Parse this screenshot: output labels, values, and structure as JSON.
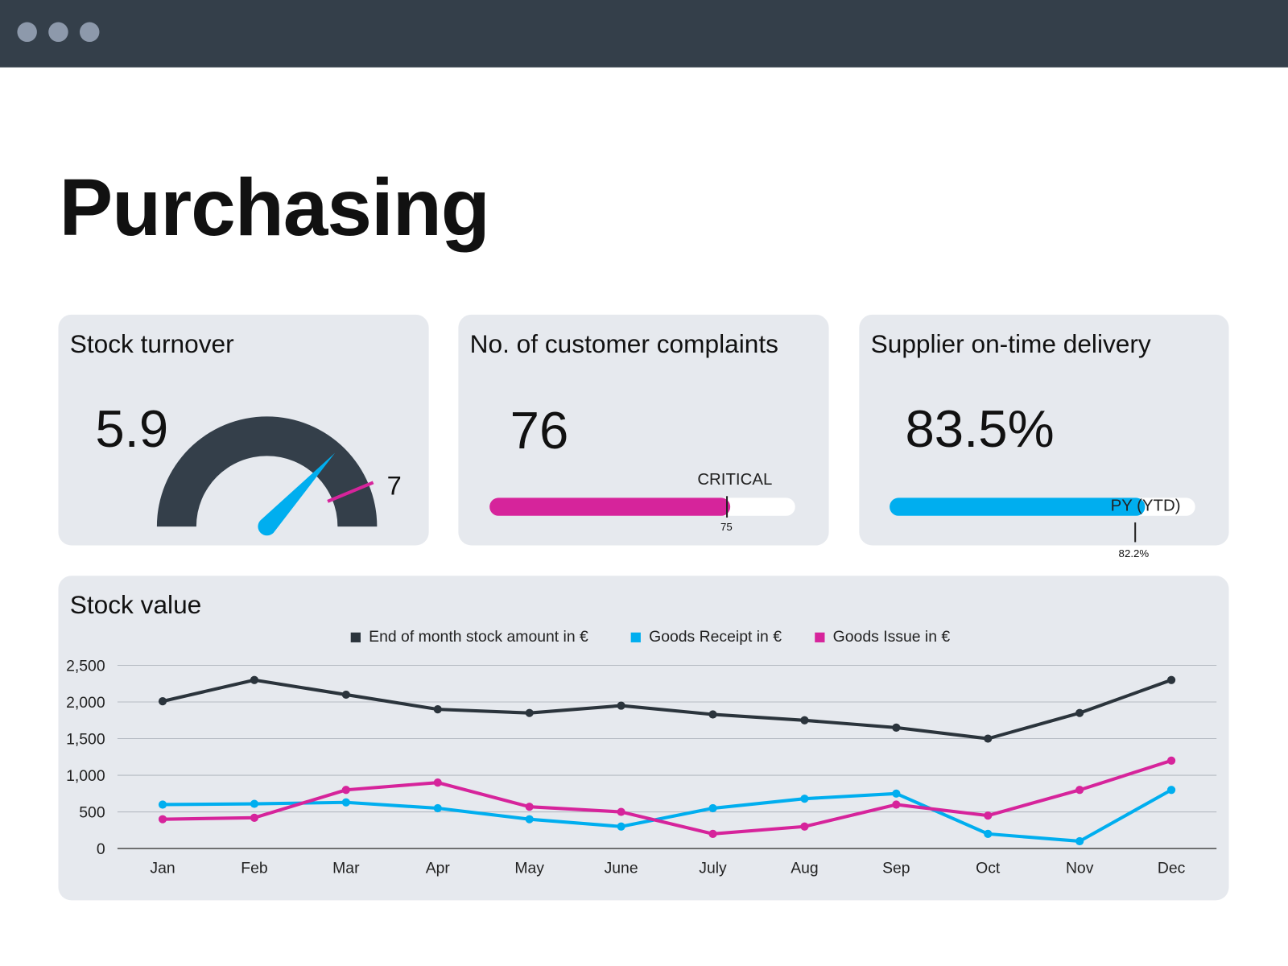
{
  "window": {
    "controls": [
      "close",
      "minimize",
      "maximize"
    ],
    "bar_color": "#343f4a"
  },
  "page_title": "Purchasing",
  "kpis": {
    "stock_turnover": {
      "title": "Stock turnover",
      "value": "5.9",
      "value_num": 5.9,
      "target_label": "7",
      "target": 7,
      "gauge_color": "#343f4a",
      "needle_color": "#00aeef",
      "target_color": "#d6249b"
    },
    "complaints": {
      "title": "No. of customer complaints",
      "value": "76",
      "value_num": 76,
      "threshold_label": "CRITICAL",
      "threshold_value": "75",
      "threshold_num": 75,
      "bar_color": "#d6249b"
    },
    "delivery": {
      "title": "Supplier on-time delivery",
      "value": "83.5%",
      "value_num": 83.5,
      "reference_label": "PY (YTD)",
      "reference_value": "82.2%",
      "reference_num": 82.2,
      "bar_color": "#00aeef"
    }
  },
  "chart_data": {
    "type": "line",
    "title": "Stock value",
    "categories": [
      "Jan",
      "Feb",
      "Mar",
      "Apr",
      "May",
      "June",
      "July",
      "Aug",
      "Sep",
      "Oct",
      "Nov",
      "Dec"
    ],
    "ylim": [
      0,
      2500
    ],
    "yticks": [
      0,
      500,
      1000,
      1500,
      2000,
      2500
    ],
    "ytick_labels": [
      "0",
      "500",
      "1,000",
      "1,500",
      "2,000",
      "2,500"
    ],
    "grid": true,
    "legend_position": "top",
    "series": [
      {
        "name": "End of month stock amount in €",
        "color": "#2b343c",
        "values": [
          2010,
          2300,
          2100,
          1900,
          1850,
          1950,
          1830,
          1750,
          1650,
          1500,
          1850,
          2300
        ]
      },
      {
        "name": "Goods Receipt in €",
        "color": "#00aeef",
        "values": [
          600,
          610,
          630,
          550,
          400,
          300,
          550,
          680,
          750,
          200,
          100,
          800
        ]
      },
      {
        "name": "Goods Issue in €",
        "color": "#d6249b",
        "values": [
          400,
          420,
          800,
          900,
          570,
          500,
          200,
          300,
          600,
          450,
          800,
          1200
        ]
      }
    ]
  }
}
